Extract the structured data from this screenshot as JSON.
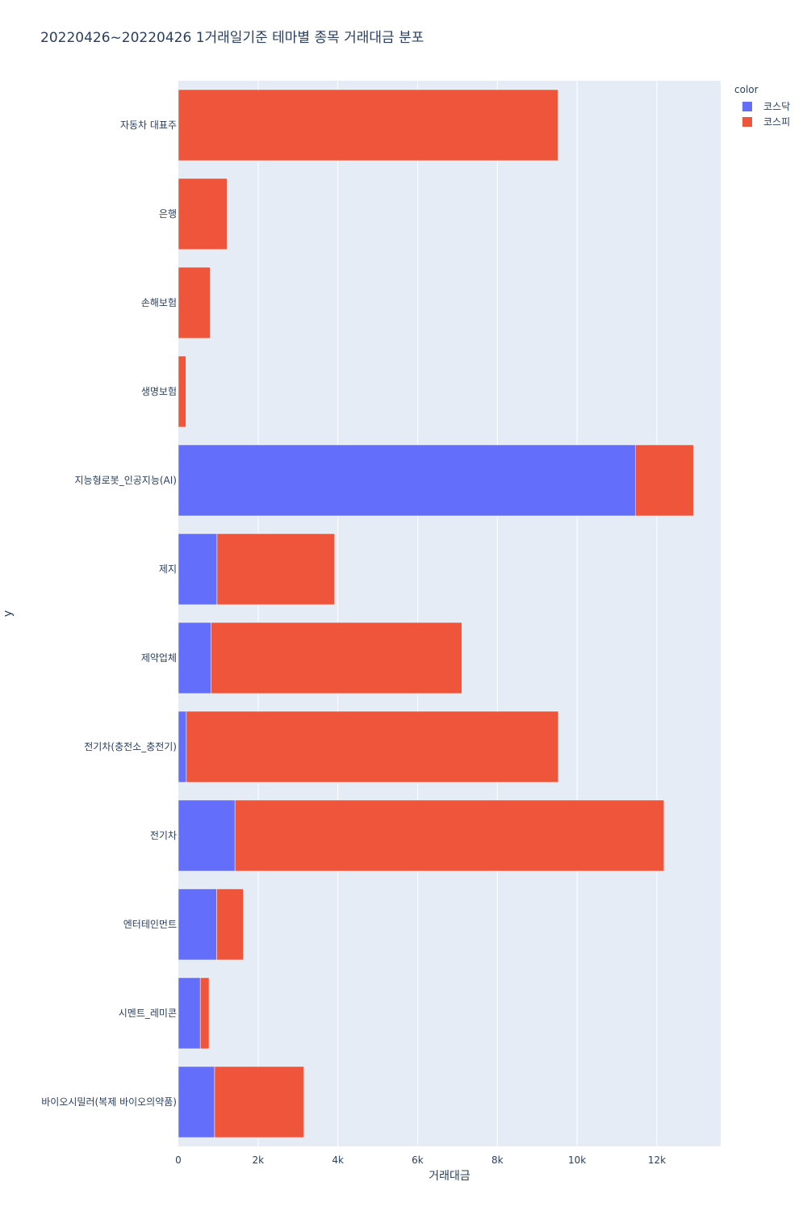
{
  "chart_data": {
    "type": "bar",
    "orientation": "horizontal",
    "barmode": "stack",
    "title": "20220426~20220426 1거래일기준 테마별 종목 거래대금 분포",
    "xlabel": "거래대금",
    "ylabel": "y",
    "xlim": [
      0,
      13600
    ],
    "x_ticks": [
      0,
      2000,
      4000,
      6000,
      8000,
      10000,
      12000
    ],
    "x_tick_labels": [
      "0",
      "2k",
      "4k",
      "6k",
      "8k",
      "10k",
      "12k"
    ],
    "grid": true,
    "legend_title": "color",
    "legend_position": "top-right",
    "categories": [
      "자동차 대표주",
      "은행",
      "손해보험",
      "생명보험",
      "지능형로봇_인공지능(AI)",
      "제지",
      "제약업체",
      "전기차(충전소_충전기)",
      "전기차",
      "엔터테인먼트",
      "시멘트_레미콘",
      "바이오시밀러(복제 바이오의약품)"
    ],
    "series": [
      {
        "name": "코스닥",
        "color": "#636efa",
        "values": [
          0,
          0,
          0,
          0,
          11470,
          970,
          820,
          200,
          1420,
          960,
          550,
          910
        ]
      },
      {
        "name": "코스피",
        "color": "#ef553b",
        "values": [
          9520,
          1220,
          800,
          190,
          1450,
          2950,
          6290,
          9330,
          10760,
          670,
          220,
          2240
        ]
      }
    ]
  }
}
